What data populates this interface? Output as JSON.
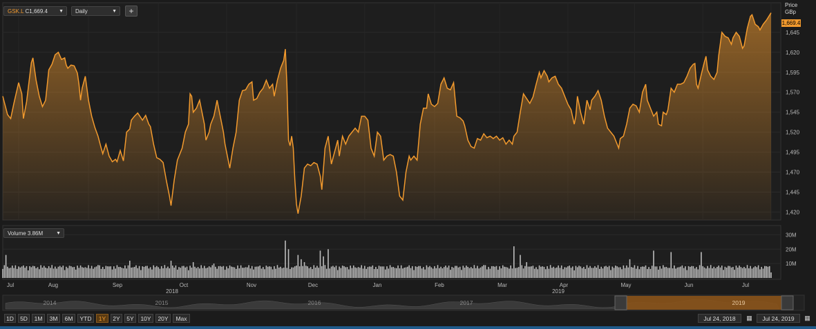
{
  "symbol_box": {
    "symbol": "GSK.L",
    "flag": "C",
    "last": "1,669.4"
  },
  "interval": {
    "selected": "Daily"
  },
  "price_header": {
    "line1": "Price",
    "line2": "GBp"
  },
  "last_price_label": "1,669.4",
  "volume_box": {
    "label": "Volume 3.86M"
  },
  "chart_data": [
    {
      "type": "line",
      "title": "",
      "series": [
        {
          "name": "GSK.L",
          "values": []
        }
      ],
      "x_labels": [
        "Jul",
        "Aug",
        "Sep",
        "Oct",
        "Nov",
        "Dec",
        "Jan",
        "Feb",
        "Mar",
        "Apr",
        "May",
        "Jun",
        "Jul"
      ],
      "year_labels": [
        "2018",
        "2019"
      ],
      "y_ticks": [
        "1,420",
        "1,445",
        "1,470",
        "1,495",
        "1,520",
        "1,545",
        "1,570",
        "1,595",
        "1,620",
        "1,645"
      ],
      "ylim": [
        1410,
        1682
      ],
      "knots": [
        [
          0,
          1565
        ],
        [
          3,
          1542
        ],
        [
          5,
          1537
        ],
        [
          7,
          1556
        ],
        [
          10,
          1582
        ],
        [
          12,
          1568
        ],
        [
          13,
          1537
        ],
        [
          15,
          1558
        ],
        [
          18,
          1607
        ],
        [
          19,
          1613
        ],
        [
          21,
          1585
        ],
        [
          23,
          1565
        ],
        [
          25,
          1552
        ],
        [
          27,
          1560
        ],
        [
          29,
          1598
        ],
        [
          31,
          1605
        ],
        [
          33,
          1617
        ],
        [
          35,
          1620
        ],
        [
          37,
          1611
        ],
        [
          39,
          1613
        ],
        [
          40,
          1604
        ],
        [
          41,
          1600
        ],
        [
          43,
          1604
        ],
        [
          45,
          1603
        ],
        [
          47,
          1594
        ],
        [
          48,
          1580
        ],
        [
          49,
          1560
        ],
        [
          50,
          1575
        ],
        [
          52,
          1590
        ],
        [
          54,
          1560
        ],
        [
          56,
          1540
        ],
        [
          58,
          1526
        ],
        [
          60,
          1515
        ],
        [
          62,
          1500
        ],
        [
          63,
          1493
        ],
        [
          65,
          1505
        ],
        [
          67,
          1490
        ],
        [
          69,
          1483
        ],
        [
          71,
          1486
        ],
        [
          72,
          1483
        ],
        [
          74,
          1497
        ],
        [
          76,
          1484
        ],
        [
          78,
          1520
        ],
        [
          80,
          1524
        ],
        [
          81,
          1535
        ],
        [
          83,
          1540
        ],
        [
          85,
          1544
        ],
        [
          87,
          1538
        ],
        [
          88,
          1535
        ],
        [
          90,
          1541
        ],
        [
          92,
          1530
        ],
        [
          93,
          1527
        ],
        [
          95,
          1505
        ],
        [
          97,
          1488
        ],
        [
          99,
          1486
        ],
        [
          101,
          1482
        ],
        [
          103,
          1460
        ],
        [
          105,
          1440
        ],
        [
          106,
          1428
        ],
        [
          108,
          1460
        ],
        [
          110,
          1485
        ],
        [
          111,
          1490
        ],
        [
          113,
          1500
        ],
        [
          115,
          1520
        ],
        [
          117,
          1530
        ],
        [
          118,
          1568
        ],
        [
          119,
          1565
        ],
        [
          120,
          1545
        ],
        [
          122,
          1550
        ],
        [
          124,
          1560
        ],
        [
          126,
          1540
        ],
        [
          127,
          1530
        ],
        [
          128,
          1510
        ],
        [
          130,
          1520
        ],
        [
          131,
          1530
        ],
        [
          133,
          1540
        ],
        [
          135,
          1560
        ],
        [
          137,
          1540
        ],
        [
          139,
          1520
        ],
        [
          140,
          1505
        ],
        [
          142,
          1485
        ],
        [
          143,
          1475
        ],
        [
          145,
          1500
        ],
        [
          147,
          1520
        ],
        [
          149,
          1560
        ],
        [
          151,
          1572
        ],
        [
          153,
          1573
        ],
        [
          155,
          1580
        ],
        [
          157,
          1583
        ],
        [
          158,
          1560
        ],
        [
          160,
          1562
        ],
        [
          162,
          1570
        ],
        [
          164,
          1575
        ],
        [
          166,
          1585
        ],
        [
          168,
          1575
        ],
        [
          170,
          1580
        ],
        [
          171,
          1565
        ],
        [
          173,
          1585
        ],
        [
          175,
          1600
        ],
        [
          177,
          1610
        ],
        [
          178,
          1624
        ],
        [
          179,
          1580
        ],
        [
          180,
          1510
        ],
        [
          181,
          1503
        ],
        [
          182,
          1515
        ],
        [
          183,
          1500
        ],
        [
          184,
          1460
        ],
        [
          185,
          1430
        ],
        [
          186,
          1418
        ],
        [
          188,
          1440
        ],
        [
          190,
          1475
        ],
        [
          192,
          1480
        ],
        [
          194,
          1478
        ],
        [
          196,
          1482
        ],
        [
          198,
          1480
        ],
        [
          200,
          1465
        ],
        [
          201,
          1448
        ],
        [
          203,
          1500
        ],
        [
          205,
          1515
        ],
        [
          207,
          1480
        ],
        [
          209,
          1495
        ],
        [
          211,
          1510
        ],
        [
          212,
          1490
        ],
        [
          214,
          1515
        ],
        [
          216,
          1505
        ],
        [
          218,
          1515
        ],
        [
          220,
          1520
        ],
        [
          222,
          1525
        ],
        [
          224,
          1520
        ],
        [
          226,
          1540
        ],
        [
          228,
          1540
        ],
        [
          230,
          1535
        ],
        [
          232,
          1500
        ],
        [
          234,
          1490
        ],
        [
          236,
          1520
        ],
        [
          238,
          1515
        ],
        [
          240,
          1485
        ],
        [
          242,
          1490
        ],
        [
          244,
          1492
        ],
        [
          246,
          1490
        ],
        [
          248,
          1470
        ],
        [
          250,
          1440
        ],
        [
          252,
          1435
        ],
        [
          254,
          1470
        ],
        [
          256,
          1490
        ],
        [
          257,
          1485
        ],
        [
          259,
          1490
        ],
        [
          261,
          1485
        ],
        [
          263,
          1530
        ],
        [
          265,
          1550
        ],
        [
          267,
          1550
        ],
        [
          268,
          1568
        ],
        [
          270,
          1555
        ],
        [
          272,
          1552
        ],
        [
          274,
          1556
        ],
        [
          276,
          1580
        ],
        [
          278,
          1588
        ],
        [
          280,
          1575
        ],
        [
          282,
          1573
        ],
        [
          284,
          1582
        ],
        [
          286,
          1540
        ],
        [
          288,
          1538
        ],
        [
          290,
          1534
        ],
        [
          291,
          1528
        ],
        [
          293,
          1510
        ],
        [
          295,
          1502
        ],
        [
          297,
          1500
        ],
        [
          299,
          1512
        ],
        [
          301,
          1510
        ],
        [
          303,
          1518
        ],
        [
          305,
          1513
        ],
        [
          307,
          1515
        ],
        [
          309,
          1512
        ],
        [
          311,
          1515
        ],
        [
          313,
          1510
        ],
        [
          315,
          1513
        ],
        [
          317,
          1505
        ],
        [
          319,
          1510
        ],
        [
          321,
          1505
        ],
        [
          322,
          1515
        ],
        [
          324,
          1520
        ],
        [
          326,
          1545
        ],
        [
          328,
          1568
        ],
        [
          330,
          1562
        ],
        [
          332,
          1556
        ],
        [
          334,
          1564
        ],
        [
          336,
          1580
        ],
        [
          338,
          1595
        ],
        [
          339,
          1588
        ],
        [
          341,
          1597
        ],
        [
          343,
          1590
        ],
        [
          344,
          1583
        ],
        [
          346,
          1588
        ],
        [
          348,
          1590
        ],
        [
          350,
          1580
        ],
        [
          352,
          1575
        ],
        [
          354,
          1565
        ],
        [
          356,
          1555
        ],
        [
          358,
          1548
        ],
        [
          360,
          1530
        ],
        [
          361,
          1540
        ],
        [
          362,
          1565
        ],
        [
          364,
          1545
        ],
        [
          366,
          1530
        ],
        [
          368,
          1560
        ],
        [
          370,
          1548
        ],
        [
          371,
          1560
        ],
        [
          373,
          1565
        ],
        [
          375,
          1572
        ],
        [
          377,
          1560
        ],
        [
          379,
          1540
        ],
        [
          381,
          1525
        ],
        [
          383,
          1520
        ],
        [
          385,
          1515
        ],
        [
          387,
          1505
        ],
        [
          388,
          1500
        ],
        [
          389,
          1512
        ],
        [
          391,
          1515
        ],
        [
          393,
          1530
        ],
        [
          395,
          1550
        ],
        [
          397,
          1555
        ],
        [
          399,
          1553
        ],
        [
          401,
          1545
        ],
        [
          403,
          1570
        ],
        [
          405,
          1580
        ],
        [
          406,
          1560
        ],
        [
          408,
          1550
        ],
        [
          410,
          1540
        ],
        [
          412,
          1545
        ],
        [
          413,
          1530
        ],
        [
          415,
          1528
        ],
        [
          416,
          1545
        ],
        [
          418,
          1542
        ],
        [
          419,
          1548
        ],
        [
          421,
          1575
        ],
        [
          423,
          1570
        ],
        [
          425,
          1580
        ],
        [
          427,
          1580
        ],
        [
          429,
          1582
        ],
        [
          431,
          1590
        ],
        [
          433,
          1600
        ],
        [
          435,
          1605
        ],
        [
          436,
          1606
        ],
        [
          437,
          1580
        ],
        [
          438,
          1575
        ],
        [
          440,
          1592
        ],
        [
          442,
          1608
        ],
        [
          443,
          1615
        ],
        [
          444,
          1598
        ],
        [
          446,
          1590
        ],
        [
          448,
          1586
        ],
        [
          450,
          1595
        ],
        [
          451,
          1616
        ],
        [
          453,
          1645
        ],
        [
          455,
          1640
        ],
        [
          457,
          1638
        ],
        [
          459,
          1630
        ],
        [
          460,
          1638
        ],
        [
          462,
          1645
        ],
        [
          464,
          1640
        ],
        [
          466,
          1625
        ],
        [
          467,
          1628
        ],
        [
          469,
          1650
        ],
        [
          471,
          1665
        ],
        [
          472,
          1667
        ],
        [
          474,
          1655
        ],
        [
          476,
          1652
        ],
        [
          477,
          1648
        ],
        [
          479,
          1655
        ],
        [
          481,
          1660
        ],
        [
          484,
          1669.4
        ]
      ]
    },
    {
      "type": "bar",
      "title": "",
      "series": [
        {
          "name": "Volume",
          "values": []
        }
      ],
      "y_ticks": [
        "10M",
        "20M",
        "30M"
      ],
      "ylim": [
        0,
        35
      ],
      "spikes": [
        [
          2,
          16
        ],
        [
          10,
          8
        ],
        [
          60,
          9
        ],
        [
          80,
          12
        ],
        [
          106,
          12
        ],
        [
          120,
          11
        ],
        [
          133,
          10
        ],
        [
          178,
          26
        ],
        [
          180,
          20
        ],
        [
          186,
          16
        ],
        [
          188,
          13
        ],
        [
          190,
          11
        ],
        [
          200,
          19
        ],
        [
          202,
          15
        ],
        [
          205,
          20
        ],
        [
          303,
          9
        ],
        [
          322,
          22
        ],
        [
          326,
          16
        ],
        [
          330,
          11
        ],
        [
          395,
          13
        ],
        [
          410,
          19
        ],
        [
          421,
          18
        ],
        [
          440,
          18
        ]
      ],
      "latest": "3.86M"
    }
  ],
  "navigator": {
    "years": [
      "2014",
      "2015",
      "2016",
      "2017",
      "2019"
    ]
  },
  "range_buttons": [
    "1D",
    "5D",
    "1M",
    "3M",
    "6M",
    "YTD",
    "1Y",
    "2Y",
    "5Y",
    "10Y",
    "20Y",
    "Max"
  ],
  "active_range": "1Y",
  "date_range": {
    "from": "Jul 24, 2018",
    "to": "Jul 24, 2019"
  },
  "colors": {
    "accent": "#f29a2e",
    "background": "#1b1b1b",
    "grid": "#2b2b2b",
    "volume_bar": "#bdbdbd"
  }
}
